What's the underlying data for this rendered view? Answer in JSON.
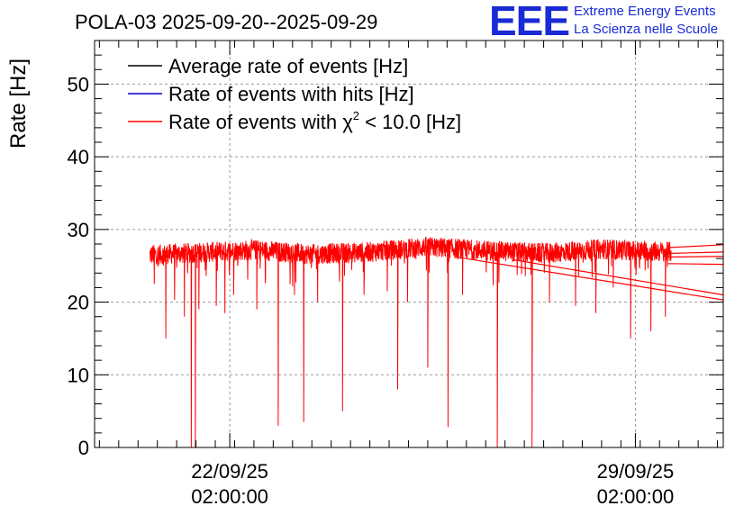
{
  "header": {
    "title": "POLA-03 2025-09-20--2025-09-29",
    "logo_text": "EEE",
    "logo_line1": "Extreme Energy Events",
    "logo_line2": "La Scienza nelle Scuole",
    "logo_color": "#1a2bd6"
  },
  "chart_data": {
    "type": "line",
    "title": "POLA-03 2025-09-20--2025-09-29",
    "ylabel": "Rate [Hz]",
    "xlabel": "",
    "ylim": [
      0,
      56
    ],
    "xlim_days_from_2025_09_20": [
      -0.25,
      10.6
    ],
    "grid": true,
    "legend_position": "top-left",
    "y_ticks": [
      "0",
      "10",
      "20",
      "30",
      "40",
      "50"
    ],
    "x_ticks": [
      {
        "day": 2.0833,
        "date": "22/09/25",
        "time": "02:00:00"
      },
      {
        "day": 9.0833,
        "date": "29/09/25",
        "time": "02:00:00"
      }
    ],
    "legend": [
      {
        "label": "Average rate of events [Hz]",
        "color": "#000000"
      },
      {
        "label": "Rate of events with hits [Hz]",
        "color": "#0000cc"
      },
      {
        "label_prefix": "Rate of events with ",
        "label_symbol": "χ",
        "label_sup": "2",
        "label_suffix": " < 10.0 [Hz]",
        "color": "#ff0000"
      }
    ],
    "series": [
      {
        "name": "Rate of events with chi2 < 10.0 [Hz]",
        "color": "#ff0000",
        "range_start_day": 0.7,
        "range_end_day": 9.7,
        "baseline_segments": [
          {
            "day": 0.7,
            "value": 26.5
          },
          {
            "day": 1.5,
            "value": 26.8
          },
          {
            "day": 2.5,
            "value": 27.2
          },
          {
            "day": 3.5,
            "value": 26.6
          },
          {
            "day": 4.5,
            "value": 26.9
          },
          {
            "day": 5.5,
            "value": 27.6
          },
          {
            "day": 6.5,
            "value": 27.1
          },
          {
            "day": 7.5,
            "value": 26.7
          },
          {
            "day": 8.5,
            "value": 27.3
          },
          {
            "day": 9.7,
            "value": 26.9
          }
        ],
        "spread": 1.4,
        "dips": [
          {
            "day": 0.78,
            "value": 22.5
          },
          {
            "day": 0.98,
            "value": 15
          },
          {
            "day": 1.13,
            "value": 20.3
          },
          {
            "day": 1.3,
            "value": 18
          },
          {
            "day": 1.42,
            "value": 0
          },
          {
            "day": 1.49,
            "value": 0
          },
          {
            "day": 1.55,
            "value": 19
          },
          {
            "day": 1.85,
            "value": 19.5
          },
          {
            "day": 2.0,
            "value": 18.5
          },
          {
            "day": 2.15,
            "value": 21
          },
          {
            "day": 2.55,
            "value": 19
          },
          {
            "day": 2.92,
            "value": 3
          },
          {
            "day": 3.2,
            "value": 21
          },
          {
            "day": 3.36,
            "value": 3.5
          },
          {
            "day": 3.6,
            "value": 20
          },
          {
            "day": 4.03,
            "value": 5
          },
          {
            "day": 4.4,
            "value": 21
          },
          {
            "day": 4.8,
            "value": 21.5
          },
          {
            "day": 4.98,
            "value": 8
          },
          {
            "day": 5.15,
            "value": 20
          },
          {
            "day": 5.5,
            "value": 11
          },
          {
            "day": 5.85,
            "value": 2.8
          },
          {
            "day": 6.1,
            "value": 21
          },
          {
            "day": 6.7,
            "value": 0
          },
          {
            "day": 7.3,
            "value": 0
          },
          {
            "day": 7.6,
            "value": 20
          },
          {
            "day": 8.05,
            "value": 19.5
          },
          {
            "day": 8.4,
            "value": 18.5
          },
          {
            "day": 8.7,
            "value": 22
          },
          {
            "day": 9.0,
            "value": 15
          },
          {
            "day": 9.35,
            "value": 16
          },
          {
            "day": 9.6,
            "value": 18
          }
        ],
        "tail_lines": [
          {
            "from_day": 6.0,
            "from_value": 26.2,
            "to_day": 10.6,
            "to_value": 20.3
          },
          {
            "from_day": 7.0,
            "from_value": 25.8,
            "to_day": 10.6,
            "to_value": 21.0
          },
          {
            "from_day": 9.65,
            "from_value": 27.5,
            "to_day": 10.6,
            "to_value": 27.9
          },
          {
            "from_day": 9.65,
            "from_value": 26.7,
            "to_day": 10.6,
            "to_value": 26.9
          },
          {
            "from_day": 9.65,
            "from_value": 26.2,
            "to_day": 10.6,
            "to_value": 26.3
          },
          {
            "from_day": 9.65,
            "from_value": 25.3,
            "to_day": 10.6,
            "to_value": 25.2
          }
        ]
      }
    ]
  }
}
